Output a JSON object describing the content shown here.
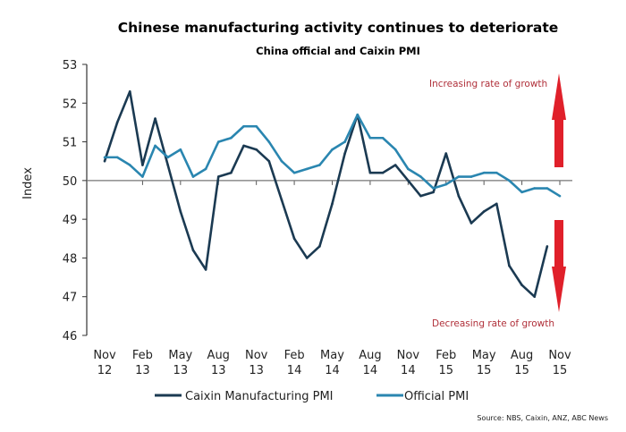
{
  "chart_data": {
    "type": "line",
    "title": "Chinese manufacturing activity continues to deteriorate",
    "subtitle": "China official and Caixin PMI",
    "ylabel": "Index",
    "xlabel": "",
    "ylim": [
      46,
      53
    ],
    "yticks": [
      "46",
      "47",
      "48",
      "49",
      "50",
      "51",
      "52",
      "53"
    ],
    "xticks": [
      [
        "Nov",
        "12"
      ],
      [
        "Feb",
        "13"
      ],
      [
        "May",
        "13"
      ],
      [
        "Aug",
        "13"
      ],
      [
        "Nov",
        "13"
      ],
      [
        "Feb",
        "14"
      ],
      [
        "May",
        "14"
      ],
      [
        "Aug",
        "14"
      ],
      [
        "Nov",
        "14"
      ],
      [
        "Feb",
        "15"
      ],
      [
        "May",
        "15"
      ],
      [
        "Aug",
        "15"
      ],
      [
        "Nov",
        "15"
      ]
    ],
    "x_start": "Nov 2012",
    "x_frequency": "monthly",
    "reference_line": 50,
    "legend_position": "bottom",
    "series": [
      {
        "name": "Caixin Manufacturing PMI",
        "color": "#1b3a52",
        "values": [
          50.5,
          51.5,
          52.3,
          50.4,
          51.6,
          50.4,
          49.2,
          48.2,
          47.7,
          50.1,
          50.2,
          50.9,
          50.8,
          50.5,
          49.5,
          48.5,
          48.0,
          48.3,
          49.4,
          50.7,
          51.7,
          50.2,
          50.2,
          50.4,
          50.0,
          49.6,
          49.7,
          50.7,
          49.6,
          48.9,
          49.2,
          49.4,
          47.8,
          47.3,
          47.0,
          48.3
        ]
      },
      {
        "name": "Official PMI",
        "color": "#2a86b0",
        "values": [
          50.6,
          50.6,
          50.4,
          50.1,
          50.9,
          50.6,
          50.8,
          50.1,
          50.3,
          51.0,
          51.1,
          51.4,
          51.4,
          51.0,
          50.5,
          50.2,
          50.3,
          50.4,
          50.8,
          51.0,
          51.7,
          51.1,
          51.1,
          50.8,
          50.3,
          50.1,
          49.8,
          49.9,
          50.1,
          50.1,
          50.2,
          50.2,
          50.0,
          49.7,
          49.8,
          49.8,
          49.6
        ]
      }
    ],
    "annotations": {
      "up": "Increasing rate of growth",
      "down": "Decreasing rate of growth",
      "arrow_color": "#e0202a"
    },
    "source": "Source: NBS, Caixin, ANZ, ABC News"
  }
}
